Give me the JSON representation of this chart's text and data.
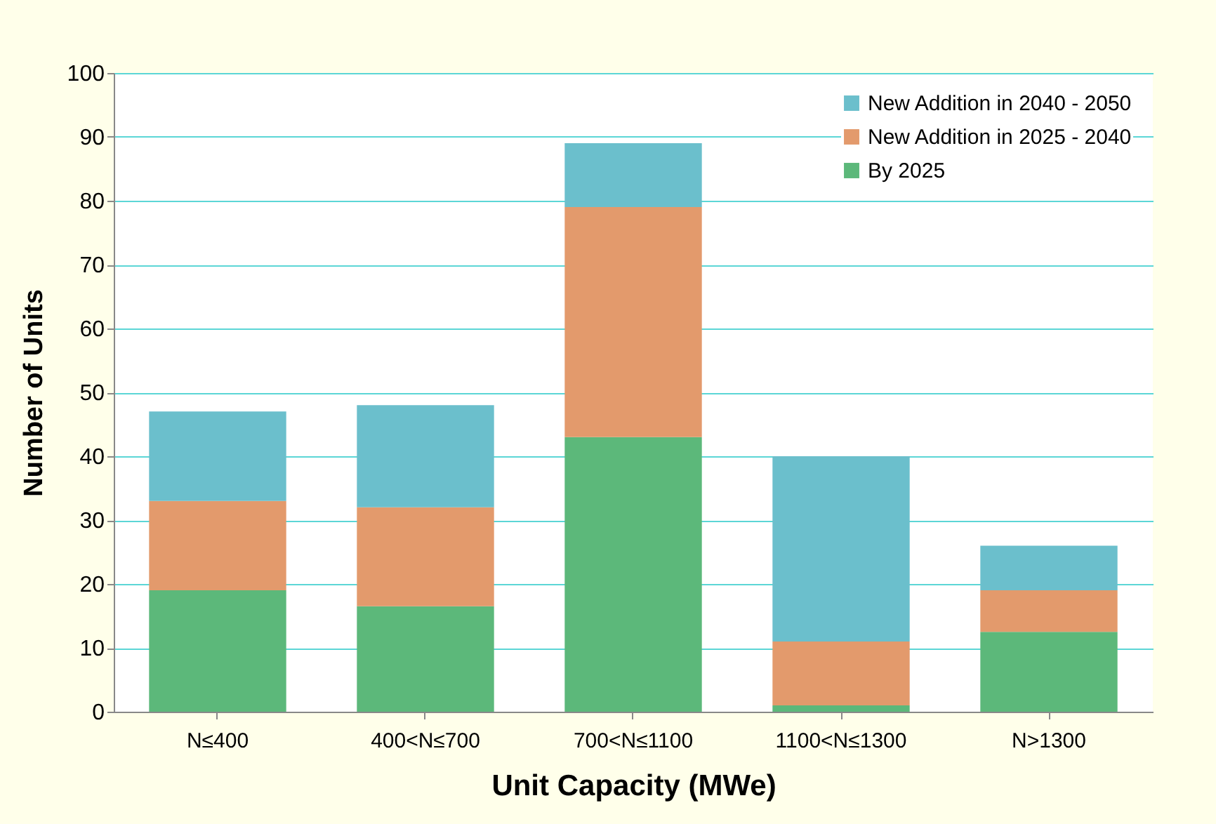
{
  "chart_data": {
    "type": "bar",
    "xlabel": "Unit Capacity (MWe)",
    "ylabel": "Number of Units",
    "categories": [
      "N≤400",
      "400<N≤700",
      "700<N≤1100",
      "1100<N≤1300",
      "N>1300"
    ],
    "series": [
      {
        "name": "By 2025",
        "color": "#5cb87a",
        "values": [
          19,
          16.5,
          43,
          1,
          12.5
        ]
      },
      {
        "name": "New Addition in 2025 - 2040",
        "color": "#e39a6c",
        "values": [
          14,
          15.5,
          36,
          10,
          6.5
        ]
      },
      {
        "name": "New Addition in 2040 - 2050",
        "color": "#6bbfcc",
        "values": [
          14,
          16,
          10,
          29,
          7
        ]
      }
    ],
    "stacked": true,
    "ylim": [
      0,
      100
    ],
    "yticks": [
      0,
      10,
      20,
      30,
      40,
      50,
      60,
      70,
      80,
      90,
      100
    ],
    "grid": "y",
    "legend": "top right"
  }
}
